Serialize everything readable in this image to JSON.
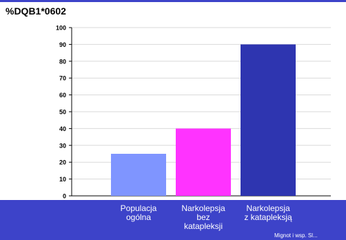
{
  "chart_data": {
    "type": "bar",
    "title": "%DQB1*0602",
    "categories": [
      "Populacja ogólna",
      "Narkolepsja bez katapleksji",
      "Narkolepsja z katapleksją"
    ],
    "category_lines": [
      [
        "Populacja",
        "ogólna"
      ],
      [
        "Narkolepsja",
        "bez",
        "katapleksji"
      ],
      [
        "Narkolepsja",
        "z katapleksją"
      ]
    ],
    "values": [
      25,
      40,
      90
    ],
    "bar_colors": [
      "#7f95ff",
      "#ff33ff",
      "#2e35b0"
    ],
    "ylim": [
      0,
      100
    ],
    "yticks": [
      0,
      10,
      20,
      30,
      40,
      50,
      60,
      70,
      80,
      90,
      100
    ],
    "grid": true,
    "xlabel": "",
    "ylabel": ""
  },
  "theme": {
    "band_color": "#3d43c9",
    "grid_color": "#d9d9d9",
    "axis_color": "#000000"
  },
  "footer": {
    "note": "Mignot i wsp. Sl..."
  }
}
